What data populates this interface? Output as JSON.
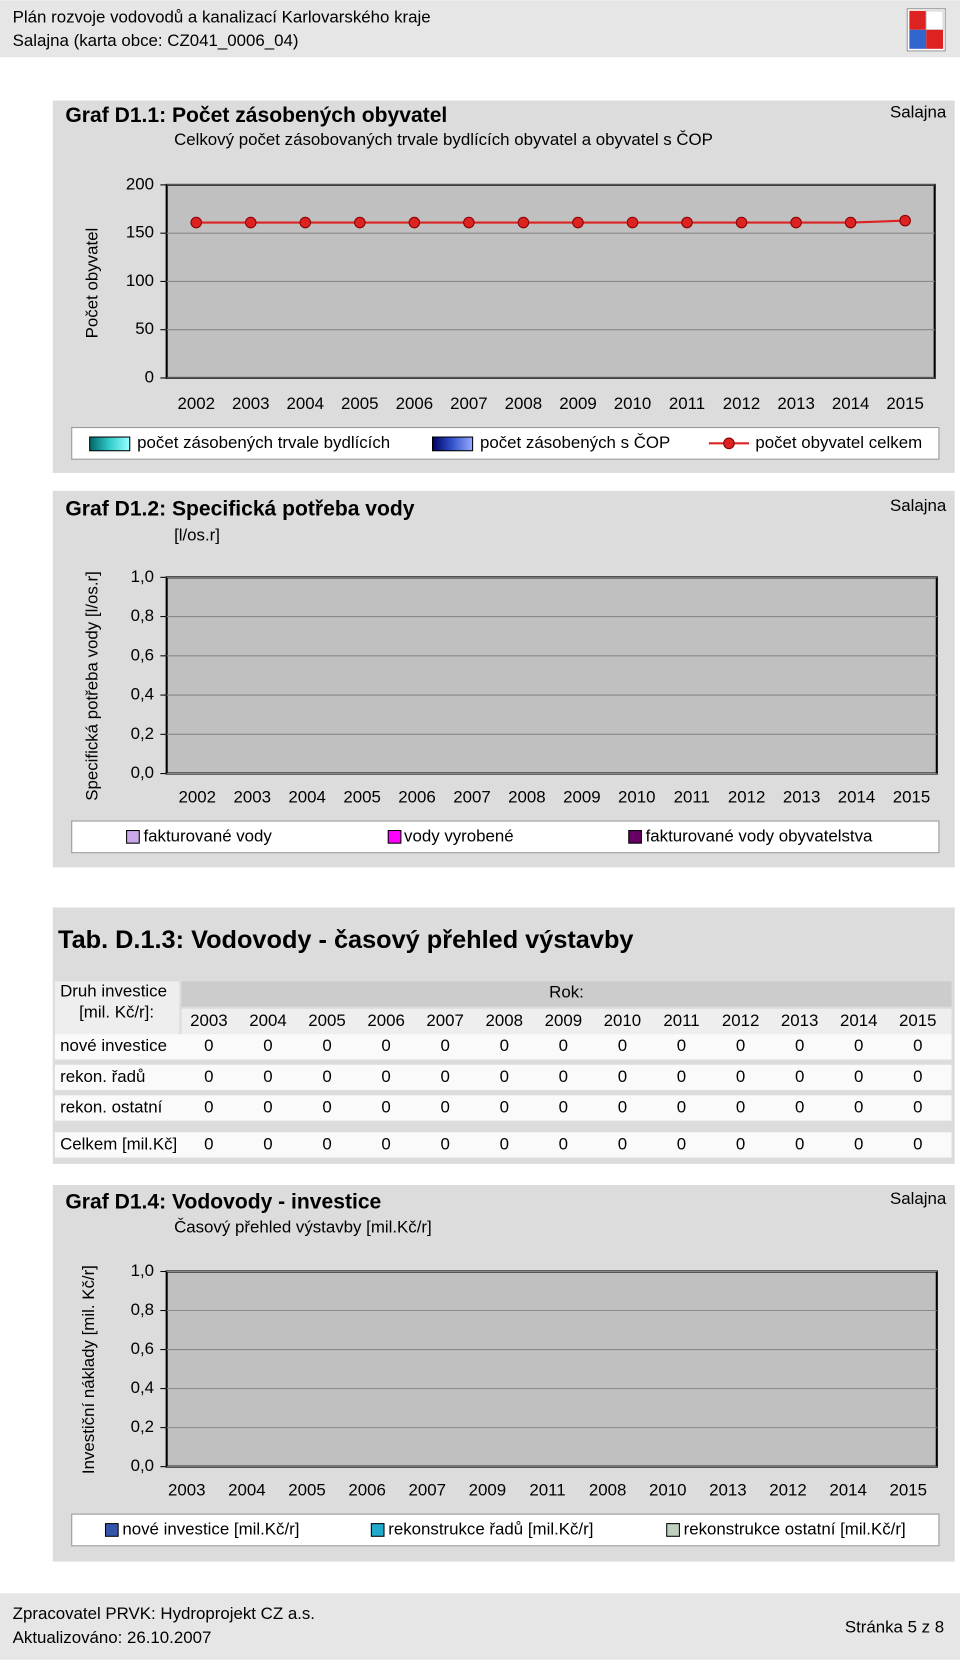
{
  "header": {
    "title": "Plán rozvoje vodovodů a kanalizací Karlovarského kraje",
    "subtitle": "Salajna (karta obce: CZ041_0006_04)"
  },
  "chart_data": [
    {
      "type": "line",
      "title": "Graf D1.1: Počet zásobených obyvatel",
      "subtitle": "Celkový počet zásobovaných trvale bydlících obyvatel a obyvatel s ČOP",
      "place": "Salajna",
      "ylabel": "Počet obyvatel",
      "categories": [
        "2002",
        "2003",
        "2004",
        "2005",
        "2006",
        "2007",
        "2008",
        "2009",
        "2010",
        "2011",
        "2012",
        "2013",
        "2014",
        "2015"
      ],
      "ylim": [
        0,
        200
      ],
      "yticks": [
        0,
        50,
        100,
        150,
        200
      ],
      "grid": true,
      "series": [
        {
          "name": "počet zásobených trvale bydlících",
          "type": "bar",
          "color": "#33cccc",
          "values": [
            null,
            null,
            null,
            null,
            null,
            null,
            null,
            null,
            null,
            null,
            null,
            null,
            null,
            null
          ]
        },
        {
          "name": "počet zásobených s ČOP",
          "type": "bar",
          "color": "#3355cc",
          "values": [
            null,
            null,
            null,
            null,
            null,
            null,
            null,
            null,
            null,
            null,
            null,
            null,
            null,
            null
          ]
        },
        {
          "name": "počet obyvatel celkem",
          "type": "line",
          "color": "#dd2222",
          "values": [
            161,
            161,
            161,
            161,
            161,
            161,
            161,
            161,
            161,
            161,
            161,
            161,
            161,
            163
          ]
        }
      ]
    },
    {
      "type": "bar",
      "title": "Graf D1.2: Specifická potřeba vody",
      "subtitle": "[l/os.r]",
      "place": "Salajna",
      "ylabel": "Specifická potřeba vody [l/os.r]",
      "categories": [
        "2002",
        "2003",
        "2004",
        "2005",
        "2006",
        "2007",
        "2008",
        "2009",
        "2010",
        "2011",
        "2012",
        "2013",
        "2014",
        "2015"
      ],
      "ylim": [
        0,
        1
      ],
      "yticks": [
        {
          "value": 0,
          "label": "0,0"
        },
        {
          "value": 0.2,
          "label": "0,2"
        },
        {
          "value": 0.4,
          "label": "0,4"
        },
        {
          "value": 0.6,
          "label": "0,6"
        },
        {
          "value": 0.8,
          "label": "0,8"
        },
        {
          "value": 1,
          "label": "1,0"
        }
      ],
      "grid": true,
      "series": [
        {
          "name": "fakturované vody",
          "color": "#c8a8e8",
          "values": [
            null,
            null,
            null,
            null,
            null,
            null,
            null,
            null,
            null,
            null,
            null,
            null,
            null,
            null
          ]
        },
        {
          "name": "vody vyrobené",
          "color": "#ff00ff",
          "values": [
            null,
            null,
            null,
            null,
            null,
            null,
            null,
            null,
            null,
            null,
            null,
            null,
            null,
            null
          ]
        },
        {
          "name": "fakturované vody obyvatelstva",
          "color": "#660066",
          "values": [
            null,
            null,
            null,
            null,
            null,
            null,
            null,
            null,
            null,
            null,
            null,
            null,
            null,
            null
          ]
        }
      ]
    },
    {
      "type": "bar",
      "title": "Graf D1.4: Vodovody - investice",
      "subtitle": "Časový přehled výstavby [mil.Kč/r]",
      "place": "Salajna",
      "ylabel": "Investiční náklady [mil. Kč/r]",
      "categories": [
        "2003",
        "2004",
        "2005",
        "2006",
        "2007",
        "2009",
        "2011",
        "2008",
        "2010",
        "2013",
        "2012",
        "2014",
        "2015"
      ],
      "ylim": [
        0,
        1
      ],
      "yticks": [
        {
          "value": 0,
          "label": "0,0"
        },
        {
          "value": 0.2,
          "label": "0,2"
        },
        {
          "value": 0.4,
          "label": "0,4"
        },
        {
          "value": 0.6,
          "label": "0,6"
        },
        {
          "value": 0.8,
          "label": "0,8"
        },
        {
          "value": 1,
          "label": "1,0"
        }
      ],
      "grid": true,
      "series": [
        {
          "name": "nové investice [mil.Kč/r]",
          "color": "#3355aa",
          "values": [
            null,
            null,
            null,
            null,
            null,
            null,
            null,
            null,
            null,
            null,
            null,
            null,
            null
          ]
        },
        {
          "name": "rekonstrukce řadů [mil.Kč/r]",
          "color": "#22aacc",
          "values": [
            null,
            null,
            null,
            null,
            null,
            null,
            null,
            null,
            null,
            null,
            null,
            null,
            null
          ]
        },
        {
          "name": "rekonstrukce ostatní [mil.Kč/r]",
          "color": "#c0d0c0",
          "values": [
            null,
            null,
            null,
            null,
            null,
            null,
            null,
            null,
            null,
            null,
            null,
            null,
            null
          ]
        }
      ]
    }
  ],
  "table": {
    "title": "Tab. D.1.3: Vodovody - časový přehled výstavby",
    "header_label": [
      "Druh investice",
      "[mil. Kč/r]:"
    ],
    "year_header": "Rok:",
    "years": [
      "2003",
      "2004",
      "2005",
      "2006",
      "2007",
      "2008",
      "2009",
      "2010",
      "2011",
      "2012",
      "2013",
      "2014",
      "2015"
    ],
    "rows": [
      {
        "label": "nové investice",
        "values": [
          0,
          0,
          0,
          0,
          0,
          0,
          0,
          0,
          0,
          0,
          0,
          0,
          0
        ]
      },
      {
        "label": "rekon. řadů",
        "values": [
          0,
          0,
          0,
          0,
          0,
          0,
          0,
          0,
          0,
          0,
          0,
          0,
          0
        ]
      },
      {
        "label": "rekon. ostatní",
        "values": [
          0,
          0,
          0,
          0,
          0,
          0,
          0,
          0,
          0,
          0,
          0,
          0,
          0
        ]
      }
    ],
    "total": {
      "label": "Celkem [mil.Kč]",
      "values": [
        0,
        0,
        0,
        0,
        0,
        0,
        0,
        0,
        0,
        0,
        0,
        0,
        0
      ]
    }
  },
  "footer": {
    "author": "Zpracovatel PRVK: Hydroprojekt CZ a.s.",
    "updated": "Aktualizováno: 26.10.2007",
    "page": "Stránka 5 z 8"
  }
}
